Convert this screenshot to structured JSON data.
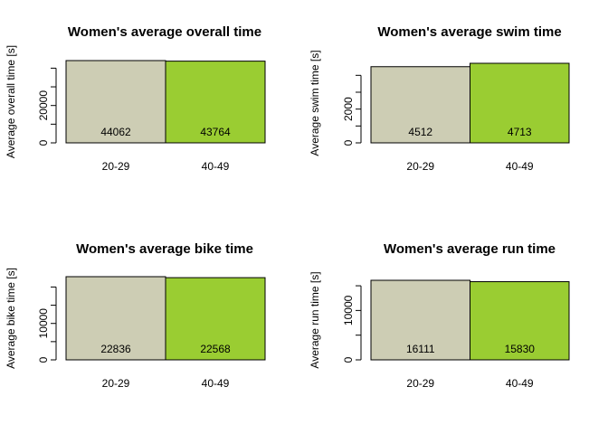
{
  "colors": {
    "group_a": "#cdcdb4",
    "group_b": "#9acd32",
    "outline": "#000000"
  },
  "chart_data": [
    {
      "type": "bar",
      "title": "Women's average overall time",
      "ylabel": "Average overall time [s]",
      "categories": [
        "20-29",
        "40-49"
      ],
      "values": [
        44062,
        43764
      ],
      "value_labels": [
        "44062",
        "43764"
      ],
      "ylim": [
        0,
        44062
      ],
      "yticks": [
        0,
        10000,
        20000,
        30000,
        40000
      ],
      "ytick_labels": [
        "0",
        "",
        "20000",
        "",
        ""
      ]
    },
    {
      "type": "bar",
      "title": "Women's average swim time",
      "ylabel": "Average swim time [s]",
      "categories": [
        "20-29",
        "40-49"
      ],
      "values": [
        4512,
        4713
      ],
      "value_labels": [
        "4512",
        "4713"
      ],
      "ylim": [
        0,
        4713
      ],
      "yticks": [
        0,
        1000,
        2000,
        3000,
        4000,
        5000
      ],
      "ytick_labels": [
        "0",
        "",
        "2000",
        "",
        "",
        "5000"
      ]
    },
    {
      "type": "bar",
      "title": "Women's average bike time",
      "ylabel": "Average bike time [s]",
      "categories": [
        "20-29",
        "40-49"
      ],
      "values": [
        22836,
        22568
      ],
      "value_labels": [
        "22836",
        "22568"
      ],
      "ylim": [
        0,
        22836
      ],
      "yticks": [
        0,
        5000,
        10000,
        15000,
        20000
      ],
      "ytick_labels": [
        "0",
        "",
        "10000",
        "",
        ""
      ]
    },
    {
      "type": "bar",
      "title": "Women's average run time",
      "ylabel": "Average run time [s]",
      "categories": [
        "20-29",
        "40-49"
      ],
      "values": [
        16111,
        15830
      ],
      "value_labels": [
        "16111",
        "15830"
      ],
      "ylim": [
        0,
        16111
      ],
      "yticks": [
        0,
        5000,
        10000,
        15000
      ],
      "ytick_labels": [
        "0",
        "",
        "10000",
        ""
      ]
    }
  ]
}
